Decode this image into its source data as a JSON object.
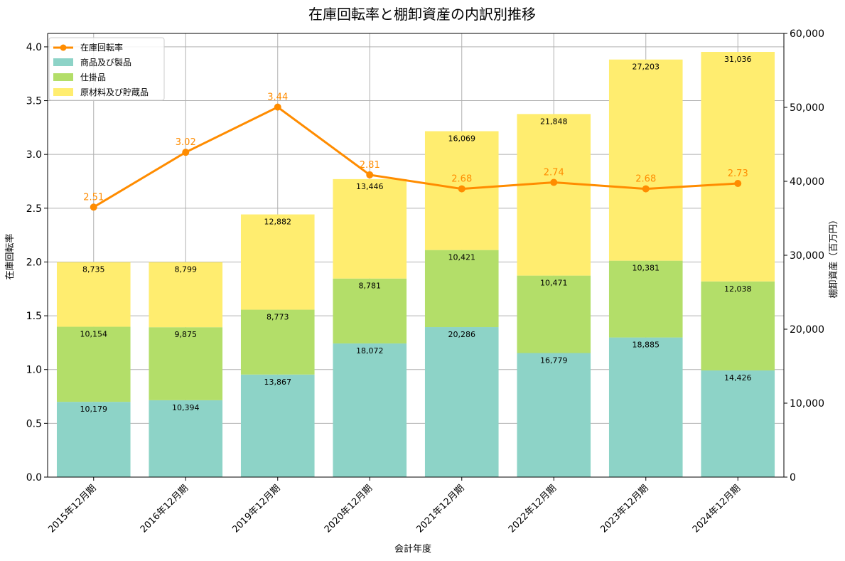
{
  "chart_data": {
    "type": "bar",
    "title": "在庫回転率と棚卸資産の内訳別推移",
    "xlabel": "会計年度",
    "ylabel_left": "在庫回転率",
    "ylabel_right": "棚卸資産（百万円）",
    "categories": [
      "2015年12月期",
      "2016年12月期",
      "2019年12月期",
      "2020年12月期",
      "2021年12月期",
      "2022年12月期",
      "2023年12月期",
      "2024年12月期"
    ],
    "ylim_left": [
      0,
      4.125
    ],
    "ylim_right": [
      0,
      60000
    ],
    "yticks_left": [
      "0.0",
      "0.5",
      "1.0",
      "1.5",
      "2.0",
      "2.5",
      "3.0",
      "3.5",
      "4.0"
    ],
    "yticks_right": [
      "0",
      "10,000",
      "20,000",
      "30,000",
      "40,000",
      "50,000",
      "60,000"
    ],
    "grid": true,
    "legend_position": "top-left",
    "series": [
      {
        "name": "在庫回転率",
        "kind": "line",
        "color": "#ff8c00",
        "values": [
          2.51,
          3.02,
          3.44,
          2.81,
          2.68,
          2.74,
          2.68,
          2.73
        ],
        "labels": [
          "2.51",
          "3.02",
          "3.44",
          "2.81",
          "2.68",
          "2.74",
          "2.68",
          "2.73"
        ]
      },
      {
        "name": "商品及び製品",
        "kind": "bar",
        "color": "#8dd3c7",
        "values": [
          10179,
          10394,
          13867,
          18072,
          20286,
          16779,
          18885,
          14426
        ],
        "labels": [
          "10,179",
          "10,394",
          "13,867",
          "18,072",
          "20,286",
          "16,779",
          "18,885",
          "14,426"
        ]
      },
      {
        "name": "仕掛品",
        "kind": "bar",
        "color": "#b3de69",
        "values": [
          10154,
          9875,
          8773,
          8781,
          10421,
          10471,
          10381,
          12038
        ],
        "labels": [
          "10,154",
          "9,875",
          "8,773",
          "8,781",
          "10,421",
          "10,471",
          "10,381",
          "12,038"
        ]
      },
      {
        "name": "原材料及び貯蔵品",
        "kind": "bar",
        "color": "#ffed6f",
        "values": [
          8735,
          8799,
          12882,
          13446,
          16069,
          21848,
          27203,
          31036
        ],
        "labels": [
          "8,735",
          "8,799",
          "12,882",
          "13,446",
          "16,069",
          "21,848",
          "27,203",
          "31,036"
        ]
      }
    ]
  }
}
